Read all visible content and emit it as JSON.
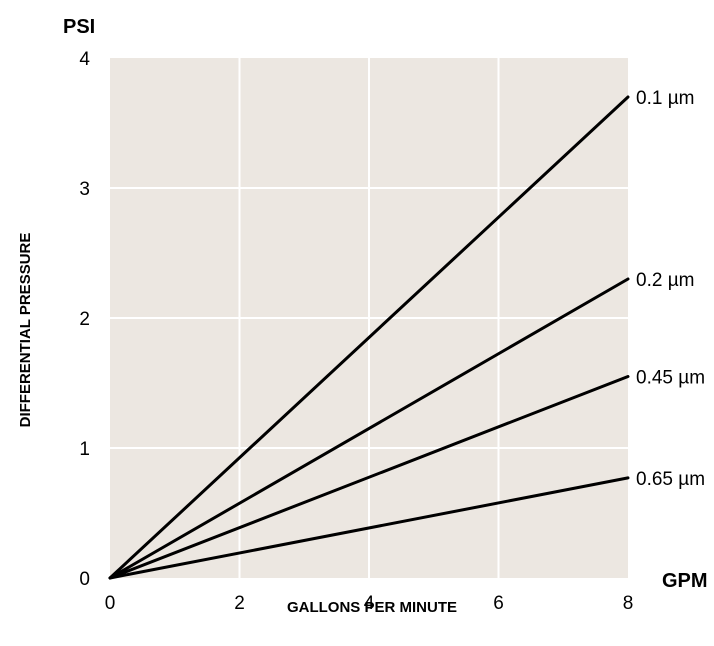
{
  "colors": {
    "plot_background": "#ece7e1",
    "grid": "#ffffff",
    "line": "#000000",
    "text": "#000000"
  },
  "chart_data": {
    "type": "line",
    "title": "",
    "xlabel": "GALLONS PER MINUTE",
    "ylabel": "DIFFERENTIAL PRESSURE",
    "x_unit": "GPM",
    "y_unit": "PSI",
    "xlim": [
      0,
      8
    ],
    "ylim": [
      0,
      4
    ],
    "xticks": [
      0,
      2,
      4,
      6,
      8
    ],
    "yticks": [
      0,
      1,
      2,
      3,
      4
    ],
    "grid": true,
    "series": [
      {
        "name": "0.1 µm",
        "x": [
          0,
          8
        ],
        "y": [
          0,
          3.7
        ]
      },
      {
        "name": "0.2 µm",
        "x": [
          0,
          8
        ],
        "y": [
          0,
          2.3
        ]
      },
      {
        "name": "0.45 µm",
        "x": [
          0,
          8
        ],
        "y": [
          0,
          1.55
        ]
      },
      {
        "name": "0.65 µm",
        "x": [
          0,
          8
        ],
        "y": [
          0,
          0.77
        ]
      }
    ]
  }
}
